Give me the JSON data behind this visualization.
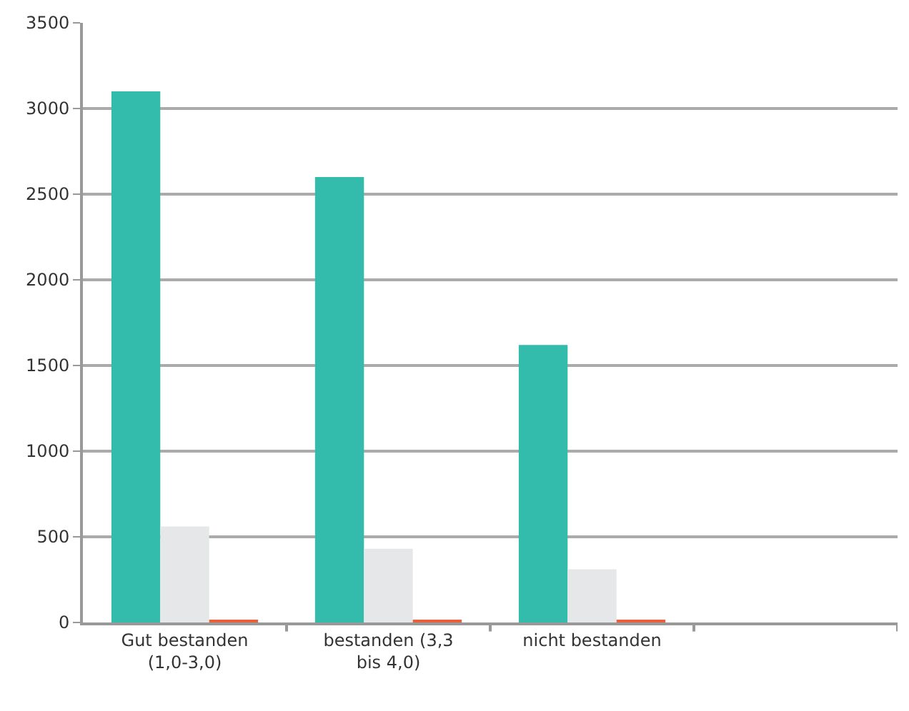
{
  "chart_data": {
    "type": "bar",
    "categories": [
      "Gut bestanden (1,0-3,0)",
      "bestanden (3,3 bis 4,0)",
      "nicht bestanden",
      null
    ],
    "series": [
      {
        "color": "#33bbab",
        "values": [
          3100,
          2600,
          1620,
          null
        ]
      },
      {
        "color": "#e6e7e8",
        "values": [
          560,
          430,
          310,
          null
        ]
      },
      {
        "color": "#e8603c",
        "values": [
          10,
          10,
          10,
          null
        ]
      }
    ],
    "ylim": [
      0,
      3500
    ],
    "yticks": [
      0,
      500,
      1000,
      1500,
      2000,
      2500,
      3000,
      3500
    ],
    "grid": "y"
  }
}
